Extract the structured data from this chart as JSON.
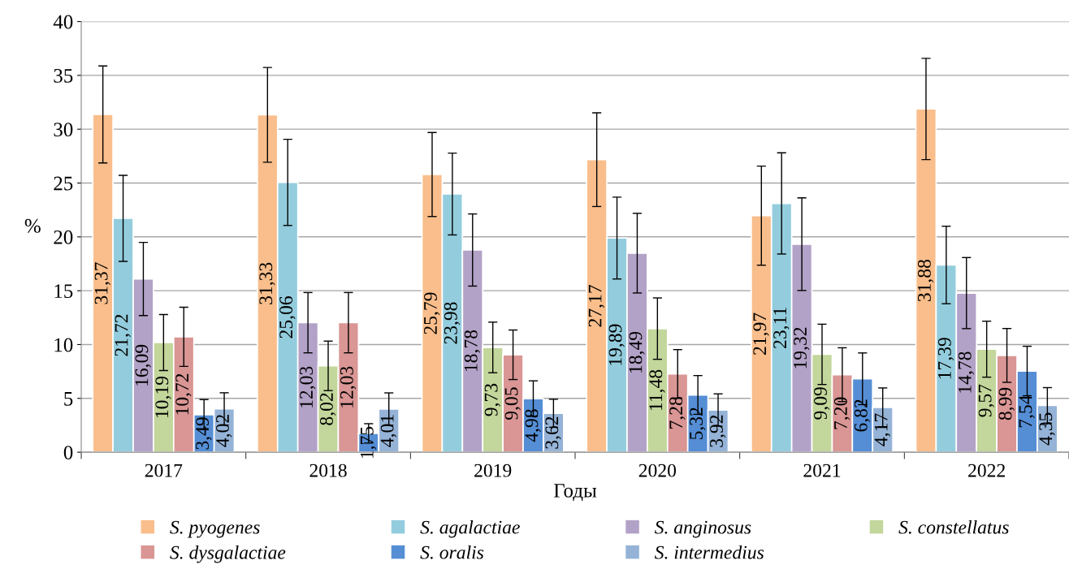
{
  "chart_data": {
    "type": "bar",
    "xlabel": "Годы",
    "ylabel": "%",
    "categories": [
      "2017",
      "2018",
      "2019",
      "2020",
      "2021",
      "2022"
    ],
    "ylim": [
      0,
      40
    ],
    "yticks": [
      0,
      5,
      10,
      15,
      20,
      25,
      30,
      35,
      40
    ],
    "grid": "y",
    "legend": "bottom",
    "data_labels": true,
    "series": [
      {
        "name": "S. pyogenes",
        "color": "#f9be8c",
        "values": [
          31.37,
          31.33,
          25.79,
          27.17,
          21.97,
          31.88
        ],
        "value_labels": [
          "31,37",
          "31,33",
          "25,79",
          "27,17",
          "21,97",
          "31,88"
        ],
        "errors": [
          4.5,
          4.4,
          3.9,
          4.35,
          4.6,
          4.7
        ]
      },
      {
        "name": "S. agalactiae",
        "color": "#93cddd",
        "values": [
          21.72,
          25.06,
          23.98,
          19.89,
          23.11,
          17.39
        ],
        "value_labels": [
          "21,72",
          "25,06",
          "23,98",
          "19,89",
          "23,11",
          "17,39"
        ],
        "errors": [
          4.0,
          4.0,
          3.8,
          3.8,
          4.7,
          3.6
        ]
      },
      {
        "name": "S. anginosus",
        "color": "#b3a2c7",
        "values": [
          16.09,
          12.03,
          18.78,
          18.49,
          19.32,
          14.78
        ],
        "value_labels": [
          "16,09",
          "12,03",
          "18,78",
          "18,49",
          "19,32",
          "14,78"
        ],
        "errors": [
          3.4,
          2.8,
          3.35,
          3.7,
          4.3,
          3.3
        ]
      },
      {
        "name": "S. constellatus",
        "color": "#c3d69b",
        "values": [
          10.19,
          8.02,
          9.73,
          11.48,
          9.09,
          9.57
        ],
        "value_labels": [
          "10,19",
          "8,02",
          "9,73",
          "11,48",
          "9,09",
          "9,57"
        ],
        "errors": [
          2.6,
          2.3,
          2.35,
          2.85,
          2.8,
          2.6
        ]
      },
      {
        "name": "S. dysgalactiae",
        "color": "#d99694",
        "values": [
          10.72,
          12.03,
          9.05,
          7.28,
          7.2,
          8.99
        ],
        "value_labels": [
          "10,72",
          "12,03",
          "9,05",
          "7,28",
          "7,20",
          "8,99"
        ],
        "errors": [
          2.75,
          2.8,
          2.3,
          2.25,
          2.5,
          2.5
        ]
      },
      {
        "name": "S. oralis",
        "color": "#558ed5",
        "values": [
          3.49,
          1.75,
          4.98,
          5.32,
          6.82,
          7.54
        ],
        "value_labels": [
          "3,49",
          "1,75",
          "4,98",
          "5,32",
          "6,82",
          "7,54"
        ],
        "errors": [
          1.4,
          0.9,
          1.65,
          1.8,
          2.4,
          2.3
        ]
      },
      {
        "name": "S. intermedius",
        "color": "#95b3d7",
        "values": [
          4.02,
          4.01,
          3.62,
          3.92,
          4.17,
          4.35
        ],
        "value_labels": [
          "4,02",
          "4,01",
          "3,62",
          "3,92",
          "4,17",
          "4,35"
        ],
        "errors": [
          1.5,
          1.5,
          1.3,
          1.5,
          1.8,
          1.65
        ]
      }
    ]
  }
}
